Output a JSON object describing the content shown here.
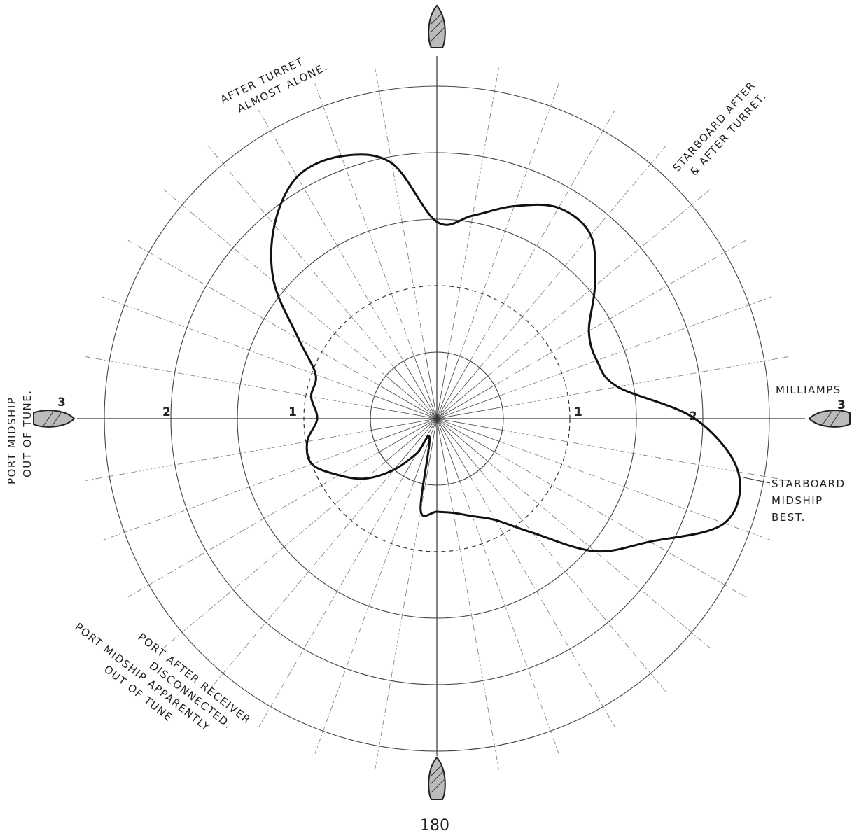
{
  "chart_data": {
    "type": "polar-line",
    "title": "",
    "radial_unit_label": "MILLIAMPS",
    "radial_range": [
      0,
      3
    ],
    "angular_range_deg": [
      0,
      360
    ],
    "angular_step_deg": 10,
    "bottom_angle_label": "180",
    "radial_tick_labels": [
      {
        "side": "left",
        "labels": [
          "1",
          "2",
          "3"
        ]
      },
      {
        "side": "right",
        "labels": [
          "1",
          "2",
          "3"
        ]
      }
    ],
    "series": [
      {
        "values_by_angle": [
          {
            "angle": 0,
            "r": 1.48
          },
          {
            "angle": 10,
            "r": 1.55
          },
          {
            "angle": 20,
            "r": 1.7
          },
          {
            "angle": 30,
            "r": 1.83
          },
          {
            "angle": 40,
            "r": 1.8
          },
          {
            "angle": 50,
            "r": 1.55
          },
          {
            "angle": 60,
            "r": 1.32
          },
          {
            "angle": 70,
            "r": 1.28
          },
          {
            "angle": 80,
            "r": 1.38
          },
          {
            "angle": 90,
            "r": 1.94
          },
          {
            "angle": 100,
            "r": 2.3
          },
          {
            "angle": 110,
            "r": 2.3
          },
          {
            "angle": 120,
            "r": 1.85
          },
          {
            "angle": 130,
            "r": 1.55
          },
          {
            "angle": 140,
            "r": 1.12
          },
          {
            "angle": 150,
            "r": 0.88
          },
          {
            "angle": 160,
            "r": 0.78
          },
          {
            "angle": 170,
            "r": 0.72
          },
          {
            "angle": 180,
            "r": 0.7
          },
          {
            "angle": 190,
            "r": 0.7
          },
          {
            "angle": 200,
            "r": 0.16
          },
          {
            "angle": 210,
            "r": 0.3
          },
          {
            "angle": 220,
            "r": 0.5
          },
          {
            "angle": 230,
            "r": 0.7
          },
          {
            "angle": 240,
            "r": 0.85
          },
          {
            "angle": 250,
            "r": 1.0
          },
          {
            "angle": 260,
            "r": 0.99
          },
          {
            "angle": 270,
            "r": 0.9
          },
          {
            "angle": 280,
            "r": 0.96
          },
          {
            "angle": 290,
            "r": 0.97
          },
          {
            "angle": 300,
            "r": 1.2
          },
          {
            "angle": 310,
            "r": 1.6
          },
          {
            "angle": 320,
            "r": 1.9
          },
          {
            "angle": 330,
            "r": 2.1
          },
          {
            "angle": 340,
            "r": 2.1
          },
          {
            "angle": 350,
            "r": 1.95
          }
        ]
      }
    ],
    "annotations": [
      {
        "id": "after-turret",
        "lines": [
          "AFTER TURRET",
          "ALMOST ALONE."
        ]
      },
      {
        "id": "starboard-after",
        "lines": [
          "STARBOARD AFTER",
          "& AFTER TURRET."
        ]
      },
      {
        "id": "port-midship",
        "lines": [
          "PORT MIDSHIP",
          "OUT OF TUNE."
        ]
      },
      {
        "id": "starboard-midship",
        "lines": [
          "STARBOARD",
          "MIDSHIP",
          "BEST."
        ]
      },
      {
        "id": "port-after",
        "lines": [
          "PORT AFTER RECEIVER",
          "DISCONNECTED.",
          "PORT MIDSHIP APPARENTLY",
          "OUT OF TUNE"
        ]
      }
    ],
    "grid": {
      "rings": [
        0.5,
        1,
        1.5,
        2,
        2.5
      ],
      "dashed_ring": 1,
      "spokes_every_deg": 10
    },
    "colors": {
      "curve": "#111111",
      "grid": "#444444",
      "ship": "#bbbbbb"
    },
    "icons": [
      "ship-icon-top",
      "ship-icon-bottom",
      "ship-icon-left",
      "ship-icon-right"
    ]
  }
}
